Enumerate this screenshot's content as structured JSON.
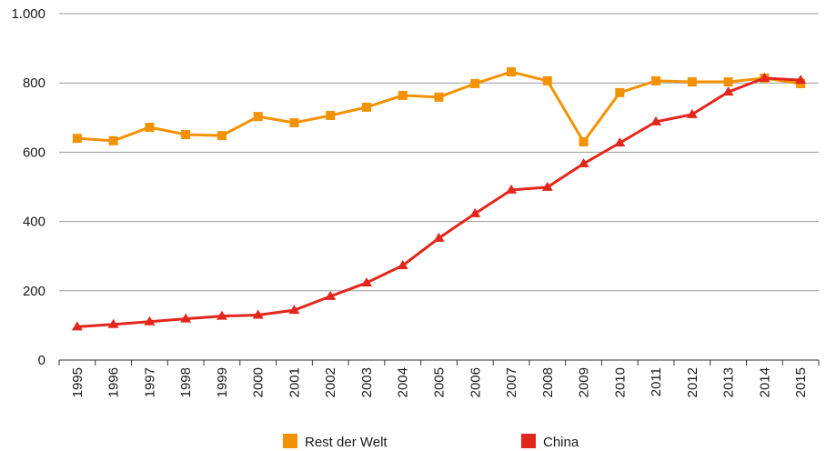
{
  "chart_data": {
    "type": "line",
    "categories": [
      "1995",
      "1996",
      "1997",
      "1998",
      "1999",
      "2000",
      "2001",
      "2002",
      "2003",
      "2004",
      "2005",
      "2006",
      "2007",
      "2008",
      "2009",
      "2010",
      "2011",
      "2012",
      "2013",
      "2014",
      "2015"
    ],
    "series": [
      {
        "name": "Rest der Welt",
        "color": "#f39200",
        "marker": "square",
        "values": [
          640,
          633,
          672,
          651,
          648,
          703,
          685,
          706,
          730,
          764,
          759,
          798,
          832,
          806,
          630,
          772,
          806,
          803,
          803,
          814,
          798
        ]
      },
      {
        "name": "China",
        "color": "#e3261c",
        "marker": "triangle",
        "values": [
          96,
          103,
          111,
          119,
          127,
          130,
          144,
          184,
          223,
          273,
          352,
          423,
          491,
          499,
          567,
          627,
          688,
          709,
          774,
          814,
          808
        ]
      }
    ],
    "ylim": [
      0,
      1000
    ],
    "yticks": [
      0,
      200,
      400,
      600,
      800,
      {
        "value": 1000,
        "label": "1.000"
      }
    ],
    "grid": true,
    "legend": "bottom"
  }
}
